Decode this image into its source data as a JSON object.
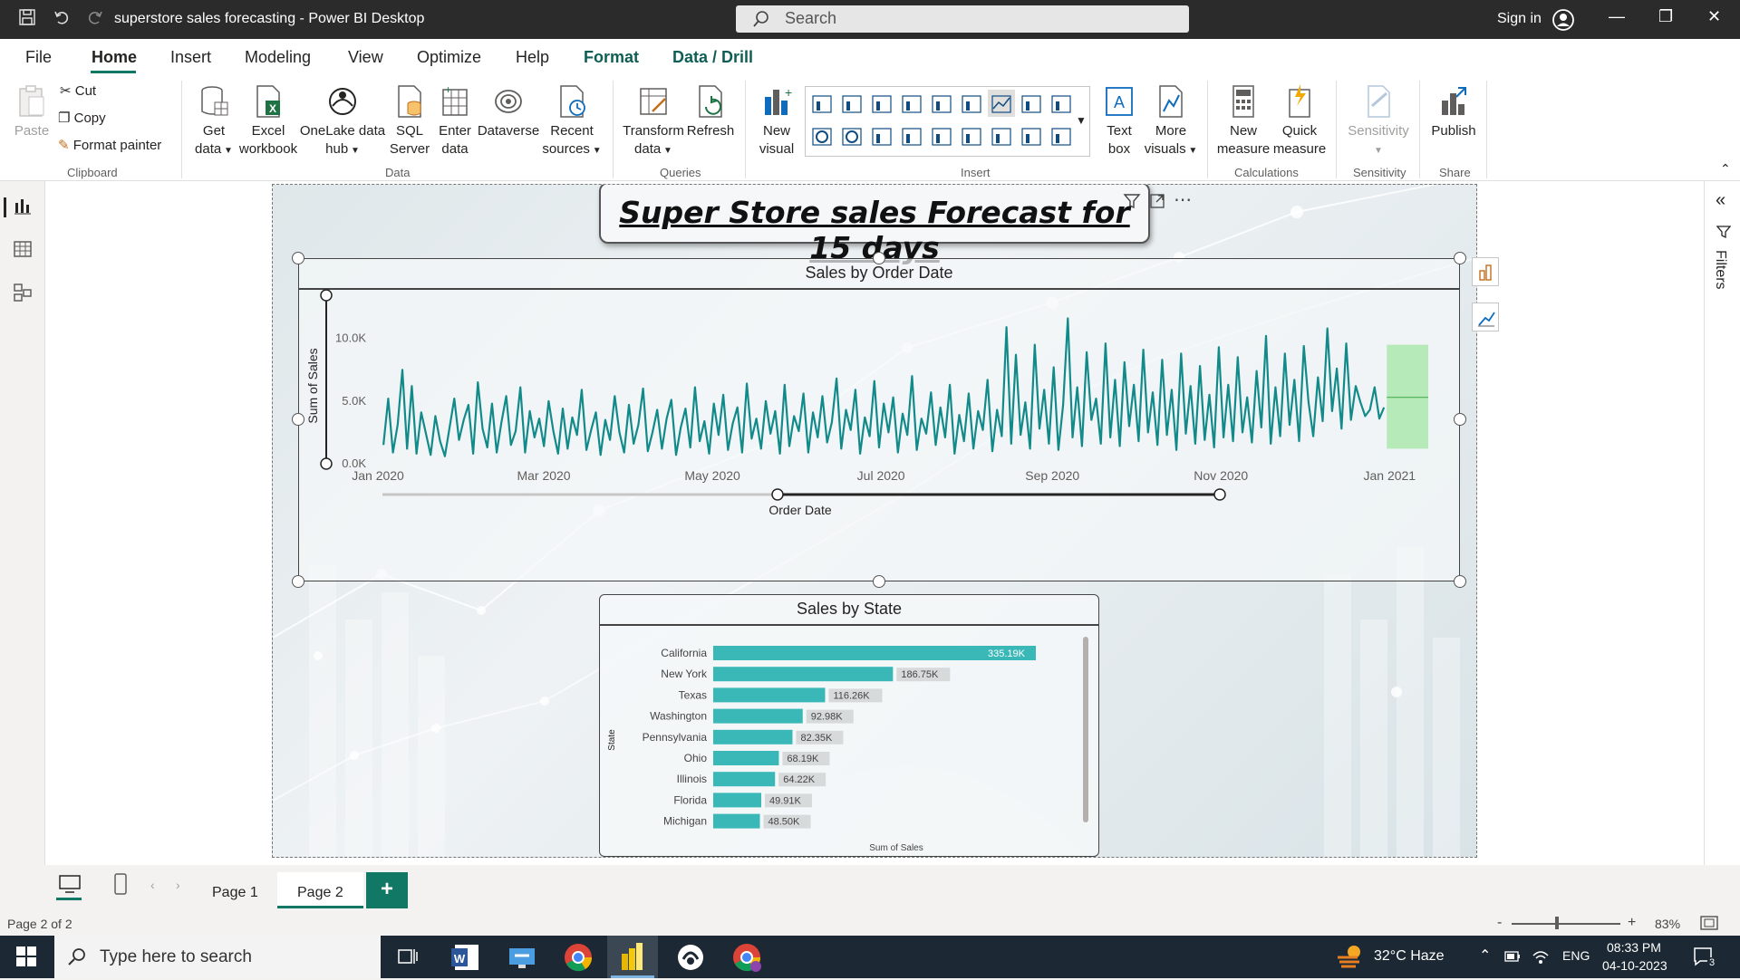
{
  "titlebar": {
    "app_title": "superstore sales forecasting - Power BI Desktop",
    "search_placeholder": "Search",
    "signin": "Sign in"
  },
  "menu": {
    "items": [
      "File",
      "Home",
      "Insert",
      "Modeling",
      "View",
      "Optimize",
      "Help",
      "Format",
      "Data / Drill"
    ],
    "active": "Home"
  },
  "ribbon": {
    "clipboard": {
      "paste": "Paste",
      "cut": "Cut",
      "copy": "Copy",
      "format_painter": "Format painter",
      "group": "Clipboard"
    },
    "data": {
      "get_data": [
        "Get",
        "data"
      ],
      "excel": [
        "Excel",
        "workbook"
      ],
      "onelake": [
        "OneLake data",
        "hub"
      ],
      "sql": [
        "SQL",
        "Server"
      ],
      "enter": [
        "Enter",
        "data"
      ],
      "dataverse": "Dataverse",
      "recent": [
        "Recent",
        "sources"
      ],
      "group": "Data"
    },
    "queries": {
      "transform": [
        "Transform",
        "data"
      ],
      "refresh": "Refresh",
      "group": "Queries"
    },
    "insert": {
      "new_visual": [
        "New",
        "visual"
      ],
      "text_box": [
        "Text",
        "box"
      ],
      "more_visuals": [
        "More",
        "visuals"
      ],
      "group": "Insert"
    },
    "calculations": {
      "new_measure": [
        "New",
        "measure"
      ],
      "quick_measure": [
        "Quick",
        "measure"
      ],
      "group": "Calculations"
    },
    "sensitivity": {
      "label": "Sensitivity",
      "group": "Sensitivity"
    },
    "share": {
      "publish": "Publish",
      "group": "Share"
    }
  },
  "report": {
    "title": "Super Store sales Forecast for 15 days"
  },
  "line_chart_title": "Sales by Order Date",
  "bar_chart_title": "Sales by State",
  "chart_data": [
    {
      "type": "line",
      "title": "Sales by Order Date",
      "xlabel": "Order Date",
      "ylabel": "Sum of Sales",
      "y_ticks": [
        "0.0K",
        "5.0K",
        "10.0K"
      ],
      "x_ticks": [
        "Jan 2020",
        "Mar 2020",
        "May 2020",
        "Jul 2020",
        "Sep 2020",
        "Nov 2020",
        "Jan 2021"
      ],
      "ylim": [
        0,
        12000
      ],
      "xlim": [
        "2019-12-31",
        "2021-01-15"
      ],
      "series": [
        {
          "color": "#138a8a",
          "x_start": "2020-01-03",
          "x_end": "2020-12-30",
          "values": [
            1500,
            5200,
            900,
            3100,
            7500,
            1200,
            6200,
            800,
            4100,
            2400,
            700,
            3800,
            1800,
            600,
            2900,
            5200,
            1900,
            3500,
            4700,
            800,
            6500,
            2800,
            1300,
            4800,
            900,
            3300,
            5400,
            1500,
            2600,
            6100,
            900,
            4200,
            2100,
            3600,
            1400,
            5000,
            2600,
            800,
            4400,
            1200,
            3700,
            2300,
            5900,
            1100,
            2700,
            4100,
            700,
            3500,
            1900,
            5400,
            2500,
            900,
            4700,
            1600,
            3100,
            6000,
            1000,
            2500,
            4300,
            1200,
            3600,
            5100,
            700,
            2900,
            4400,
            1300,
            6100,
            1800,
            3400,
            800,
            4800,
            2300,
            5500,
            1100,
            3200,
            4500,
            900,
            6400,
            2000,
            3600,
            1200,
            5000,
            2400,
            4200,
            800,
            6300,
            1400,
            3800,
            2600,
            5600,
            900,
            4100,
            2100,
            5400,
            1700,
            3300,
            6800,
            1200,
            4300,
            2700,
            5900,
            800,
            3700,
            2200,
            6600,
            1300,
            4800,
            2500,
            5300,
            900,
            4000,
            2300,
            7000,
            1100,
            3600,
            2400,
            5700,
            1500,
            4500,
            2100,
            6300,
            800,
            3900,
            1800,
            5600,
            1200,
            4200,
            2700,
            6700,
            1000,
            4300,
            2200,
            10900,
            1600,
            8700,
            2300,
            4900,
            1200,
            9500,
            2800,
            5900,
            1600,
            7700,
            1100,
            4700,
            11600,
            2100,
            6100,
            1400,
            8900,
            3500,
            5200,
            1600,
            9600,
            2100,
            6700,
            1400,
            8100,
            3000,
            6300,
            1800,
            9100,
            2500,
            5700,
            1500,
            8300,
            2300,
            5900,
            1100,
            8800,
            2400,
            6200,
            1600,
            7800,
            1900,
            5500,
            1300,
            9300,
            2100,
            6300,
            1800,
            8500,
            2500,
            5300,
            1700,
            7400,
            2900,
            10200,
            1600,
            6100,
            2200,
            8800,
            3100,
            6700,
            1800,
            9400,
            4900,
            2200,
            6900,
            3400,
            10800,
            4200,
            7600,
            2800,
            9600,
            3500,
            6200,
            4900,
            3800,
            4300,
            6100,
            3600,
            4500
          ]
        }
      ],
      "forecast_band": {
        "start": "2020-12-31",
        "end": "2021-01-15",
        "upper": 9500,
        "lower": 1200,
        "center": 5300
      }
    },
    {
      "type": "bar",
      "orientation": "horizontal",
      "title": "Sales by State",
      "xlabel": "Sum of Sales",
      "ylabel": "State",
      "color": "#3ab8b8",
      "categories": [
        "California",
        "New York",
        "Texas",
        "Washington",
        "Pennsylvania",
        "Ohio",
        "Illinois",
        "Florida",
        "Michigan"
      ],
      "values": [
        335190,
        186750,
        116260,
        92980,
        82350,
        68190,
        64220,
        49910,
        48500
      ],
      "labels": [
        "335.19K",
        "186.75K",
        "116.26K",
        "92.98K",
        "82.35K",
        "68.19K",
        "64.22K",
        "49.91K",
        "48.50K"
      ]
    }
  ],
  "pages": {
    "tabs": [
      "Page 1",
      "Page 2"
    ],
    "active": "Page 2",
    "add": "+"
  },
  "statusbar": {
    "page_info": "Page 2 of 2",
    "zoom": "83%"
  },
  "filters_pane": {
    "label": "Filters"
  },
  "taskbar": {
    "search_placeholder": "Type here to search",
    "weather": "32°C  Haze",
    "lang": "ENG",
    "time": "08:33 PM",
    "date": "04-10-2023",
    "notifications": "3"
  }
}
